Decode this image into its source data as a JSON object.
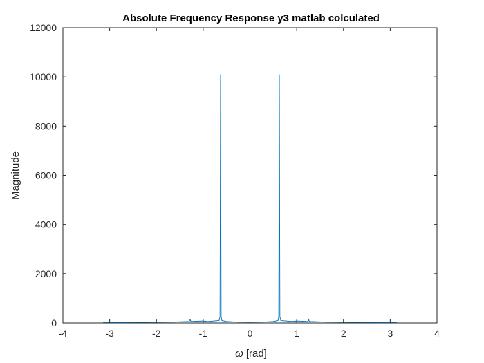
{
  "chart_data": {
    "type": "line",
    "title": "Absolute Frequency Response y3 matlab colculated",
    "xlabel_symbol": "ω",
    "xlabel_unit": "[rad]",
    "ylabel": "Magnitude",
    "xlim": [
      -4,
      4
    ],
    "ylim": [
      0,
      12000
    ],
    "xticks": [
      -4,
      -3,
      -2,
      -1,
      0,
      1,
      2,
      3,
      4
    ],
    "yticks": [
      0,
      2000,
      4000,
      6000,
      8000,
      10000,
      12000
    ],
    "grid": false,
    "line_color": "#0072bd",
    "x": [
      -3.1416,
      -2.9,
      -2.5,
      -2.0,
      -1.6,
      -1.3,
      -1.28,
      -1.26,
      -1.0,
      -0.9,
      -0.66,
      -0.64,
      -0.628,
      -0.616,
      -0.6,
      -0.5,
      -0.3,
      0.0,
      0.3,
      0.5,
      0.6,
      0.616,
      0.628,
      0.64,
      0.66,
      0.9,
      1.0,
      1.24,
      1.256,
      1.27,
      1.6,
      2.0,
      2.5,
      2.9,
      3.1416
    ],
    "y": [
      20,
      20,
      25,
      30,
      40,
      60,
      140,
      60,
      80,
      60,
      100,
      250,
      10100,
      250,
      100,
      60,
      40,
      30,
      40,
      60,
      100,
      250,
      10100,
      250,
      100,
      60,
      80,
      60,
      140,
      60,
      40,
      30,
      25,
      20,
      20
    ]
  }
}
